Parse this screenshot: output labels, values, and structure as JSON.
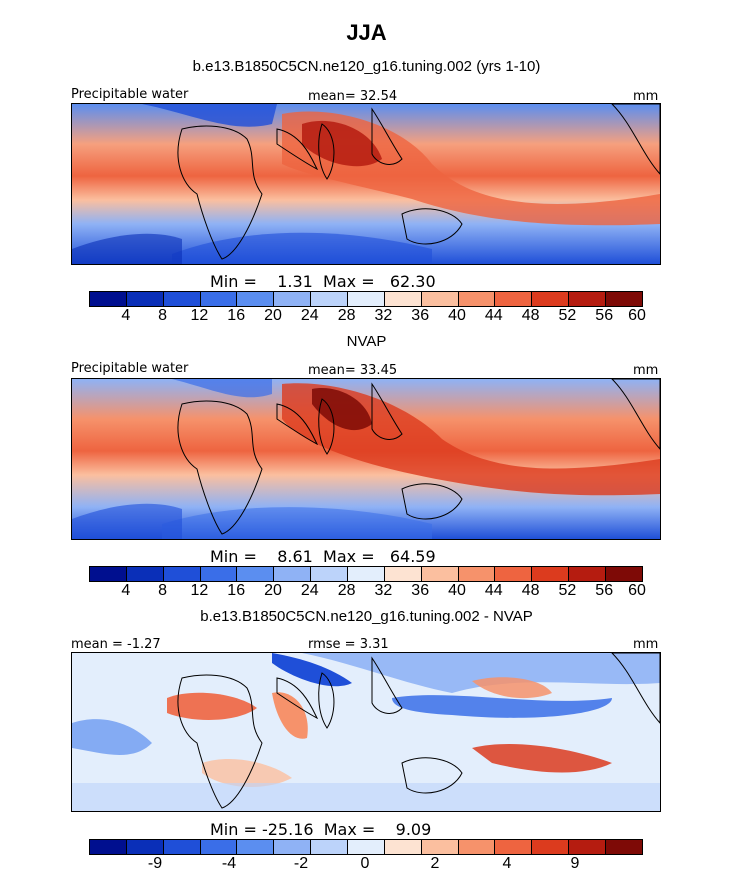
{
  "figure": {
    "title": "JJA"
  },
  "panels": [
    {
      "subtitle": "b.e13.B1850C5CN.ne120_g16.tuning.002 (yrs 1-10)",
      "left_label": "Precipitable water",
      "center_label": "mean=  32.54",
      "right_label": "mm",
      "stats": "Min =    1.31  Max =   62.30",
      "colorbar_ticks": [
        "4",
        "8",
        "12",
        "16",
        "20",
        "24",
        "28",
        "32",
        "36",
        "40",
        "44",
        "48",
        "52",
        "56",
        "60"
      ]
    },
    {
      "subtitle": "NVAP",
      "left_label": "Precipitable water",
      "center_label": "mean=  33.45",
      "right_label": "mm",
      "stats": "Min =    8.61  Max =   64.59",
      "colorbar_ticks": [
        "4",
        "8",
        "12",
        "16",
        "20",
        "24",
        "28",
        "32",
        "36",
        "40",
        "44",
        "48",
        "52",
        "56",
        "60"
      ]
    },
    {
      "subtitle": "b.e13.B1850C5CN.ne120_g16.tuning.002 - NVAP",
      "left_label": "mean =  -1.27",
      "center_label": "rmse =    3.31",
      "right_label": "mm",
      "stats": "Min = -25.16  Max =    9.09",
      "colorbar_ticks": [
        "-9",
        "-4",
        "-2",
        "0",
        "2",
        "4",
        "9"
      ]
    }
  ],
  "colors": {
    "scale": [
      "#000f8f",
      "#0a2fb8",
      "#1f4fd8",
      "#3a6ee8",
      "#5b8ef0",
      "#8fb2f5",
      "#bcd3fa",
      "#e3eefc",
      "#fde3d2",
      "#fbbf9f",
      "#f6926b",
      "#ee6440",
      "#dc3b1e",
      "#b51c10",
      "#7e0a06"
    ],
    "diverging": [
      "#000f8f",
      "#0a2fb8",
      "#1f4fd8",
      "#3a6ee8",
      "#5b8ef0",
      "#8fb2f5",
      "#bcd3fa",
      "#e3eefc",
      "#fde3d2",
      "#fbbf9f",
      "#f6926b",
      "#ee6440",
      "#dc3b1e",
      "#b51c10",
      "#7e0a06"
    ],
    "ocean_low": "#3a6ee8",
    "ocean_high": "#dc3b1e",
    "land_line": "#000000"
  }
}
